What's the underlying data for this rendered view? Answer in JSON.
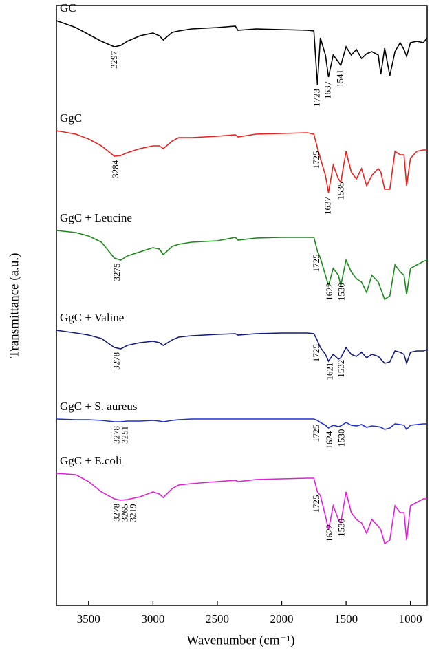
{
  "chart_data": {
    "type": "line",
    "xlabel": "Wavenumber (cm⁻¹)",
    "ylabel": "Transmittance (a.u.)",
    "xlim": [
      3750,
      870
    ],
    "xticks": [
      3500,
      3000,
      2500,
      2000,
      1500,
      1000
    ],
    "ylim": [
      0,
      872
    ],
    "x": [
      3750,
      3600,
      3500,
      3400,
      3300,
      3250,
      3200,
      3100,
      3000,
      2950,
      2920,
      2850,
      2800,
      2700,
      2500,
      2360,
      2340,
      2200,
      2000,
      1800,
      1750,
      1723,
      1700,
      1660,
      1637,
      1600,
      1560,
      1541,
      1500,
      1460,
      1420,
      1380,
      1340,
      1300,
      1250,
      1230,
      1200,
      1160,
      1120,
      1080,
      1050,
      1030,
      1000,
      950,
      900,
      870
    ],
    "series": [
      {
        "name": "GC",
        "color": "#000000",
        "peaks": [
          3297,
          1723,
          1637,
          1541
        ],
        "values": [
          850,
          840,
          830,
          820,
          812,
          814,
          820,
          828,
          832,
          828,
          822,
          833,
          835,
          838,
          840,
          842,
          836,
          838,
          837,
          836,
          835,
          757,
          825,
          800,
          768,
          800,
          790,
          785,
          812,
          800,
          808,
          795,
          802,
          805,
          800,
          772,
          810,
          770,
          805,
          818,
          808,
          798,
          818,
          820,
          818,
          825
        ]
      },
      {
        "name": "GgC",
        "color": "#e8211c",
        "peaks": [
          3284,
          1725,
          1637,
          1535
        ],
        "values": [
          690,
          685,
          678,
          668,
          653,
          654,
          658,
          664,
          668,
          668,
          664,
          675,
          680,
          680,
          682,
          684,
          681,
          685,
          686,
          687,
          685,
          665,
          650,
          625,
          600,
          640,
          620,
          615,
          660,
          630,
          620,
          635,
          610,
          625,
          635,
          630,
          605,
          605,
          660,
          655,
          655,
          610,
          650,
          660,
          662,
          662
        ]
      },
      {
        "name": "GgC + Leucine",
        "color": "#1a8a1a",
        "peaks": [
          3275,
          1725,
          1622,
          1530
        ],
        "values": [
          545,
          542,
          537,
          528,
          505,
          502,
          508,
          514,
          520,
          518,
          510,
          522,
          525,
          528,
          530,
          535,
          531,
          534,
          535,
          535,
          535,
          515,
          505,
          480,
          465,
          490,
          480,
          465,
          502,
          485,
          475,
          470,
          455,
          480,
          470,
          460,
          445,
          450,
          495,
          485,
          480,
          452,
          490,
          495,
          500,
          502
        ]
      },
      {
        "name": "GgC + Valine",
        "color": "#141b7a",
        "peaks": [
          3278,
          1725,
          1621,
          1532
        ],
        "values": [
          400,
          396,
          393,
          388,
          375,
          373,
          378,
          382,
          384,
          382,
          378,
          386,
          390,
          392,
          394,
          395,
          393,
          395,
          396,
          396,
          395,
          385,
          375,
          365,
          355,
          365,
          358,
          360,
          375,
          365,
          362,
          368,
          360,
          365,
          362,
          358,
          352,
          354,
          370,
          368,
          365,
          352,
          368,
          370,
          370,
          372
        ]
      },
      {
        "name": "GgC + S. aureus",
        "color": "#1f2fd6",
        "peaks": [
          3278,
          3251,
          1725,
          1624,
          1530
        ],
        "values": [
          271,
          270,
          270,
          269,
          267,
          267,
          268,
          268,
          269,
          268,
          267,
          269,
          270,
          271,
          271,
          271,
          271,
          271,
          271,
          271,
          271,
          269,
          266,
          262,
          258,
          262,
          260,
          261,
          266,
          262,
          261,
          263,
          259,
          261,
          260,
          259,
          256,
          258,
          264,
          263,
          262,
          256,
          262,
          263,
          264,
          264
        ]
      },
      {
        "name": "GgC + E.coli",
        "color": "#e020d8",
        "peaks": [
          3278,
          3265,
          3219,
          1725,
          1622,
          1530
        ],
        "values": [
          192,
          190,
          180,
          165,
          155,
          153,
          154,
          158,
          165,
          162,
          157,
          170,
          175,
          177,
          180,
          182,
          180,
          183,
          184,
          185,
          185,
          165,
          160,
          130,
          110,
          145,
          125,
          120,
          165,
          135,
          125,
          120,
          105,
          125,
          115,
          110,
          90,
          95,
          145,
          135,
          135,
          95,
          145,
          150,
          155,
          155
        ]
      }
    ]
  }
}
